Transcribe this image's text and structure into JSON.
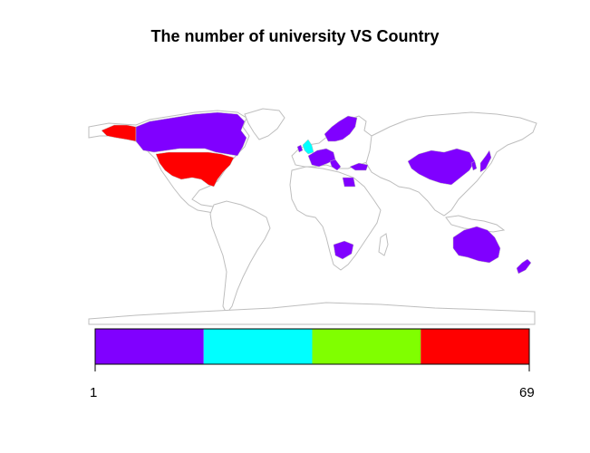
{
  "title": "The number of university VS Country",
  "legend": {
    "min_label": "1",
    "max_label": "69",
    "range": [
      1,
      69
    ],
    "bins": [
      {
        "color": "#8000FF"
      },
      {
        "color": "#00FFFF"
      },
      {
        "color": "#80FF00"
      },
      {
        "color": "#FF0000"
      }
    ]
  },
  "map": {
    "projection": "world",
    "border_color": "#BEBEBE",
    "highlighted": [
      {
        "country": "United States",
        "color": "#FF0000"
      },
      {
        "country": "Alaska (USA)",
        "color": "#FF0000"
      },
      {
        "country": "Canada",
        "color": "#8000FF"
      },
      {
        "country": "United Kingdom",
        "color": "#00FFFF"
      },
      {
        "country": "Norway",
        "color": "#8000FF"
      },
      {
        "country": "Sweden",
        "color": "#8000FF"
      },
      {
        "country": "Finland",
        "color": "#8000FF"
      },
      {
        "country": "Denmark",
        "color": "#8000FF"
      },
      {
        "country": "Ireland",
        "color": "#8000FF"
      },
      {
        "country": "Netherlands",
        "color": "#8000FF"
      },
      {
        "country": "Germany",
        "color": "#8000FF"
      },
      {
        "country": "France",
        "color": "#8000FF"
      },
      {
        "country": "Switzerland",
        "color": "#8000FF"
      },
      {
        "country": "Italy",
        "color": "#8000FF"
      },
      {
        "country": "Turkey",
        "color": "#8000FF"
      },
      {
        "country": "Egypt",
        "color": "#8000FF"
      },
      {
        "country": "China",
        "color": "#8000FF"
      },
      {
        "country": "Japan",
        "color": "#8000FF"
      },
      {
        "country": "South Korea",
        "color": "#8000FF"
      },
      {
        "country": "South Africa",
        "color": "#8000FF"
      },
      {
        "country": "Australia",
        "color": "#8000FF"
      },
      {
        "country": "New Zealand",
        "color": "#8000FF"
      }
    ]
  }
}
